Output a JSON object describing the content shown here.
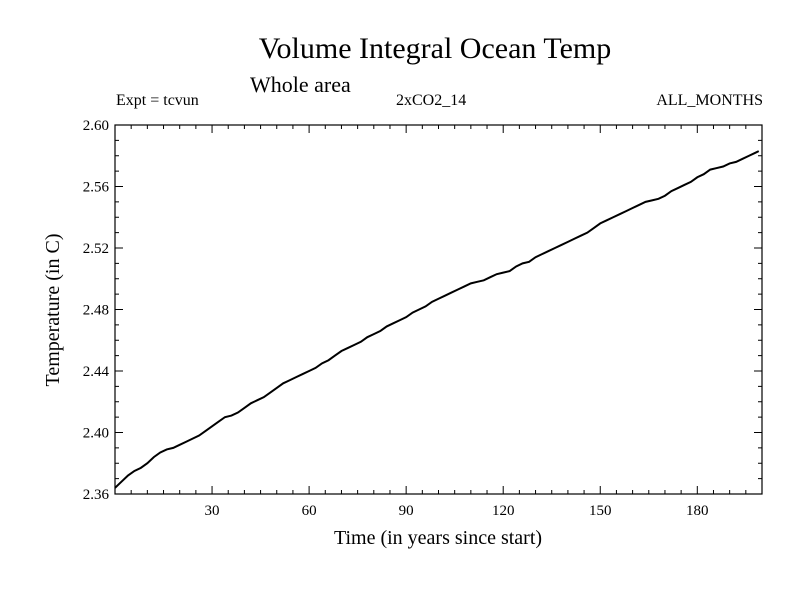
{
  "chart_data": {
    "type": "line",
    "title": "Volume Integral Ocean Temp",
    "subtitle": "Whole area",
    "annotations": {
      "left": "Expt = tcvun",
      "center": "2xCO2_14",
      "right": "ALL_MONTHS"
    },
    "xlabel": "Time (in years since start)",
    "ylabel": "Temperature (in C)",
    "xlim": [
      0,
      200
    ],
    "ylim": [
      2.36,
      2.6
    ],
    "xticks": [
      30,
      60,
      90,
      120,
      150,
      180
    ],
    "yticks": [
      "2.36",
      "2.40",
      "2.44",
      "2.48",
      "2.52",
      "2.56",
      "2.60"
    ],
    "grid": false,
    "series": [
      {
        "values_x": [
          0,
          2,
          4,
          6,
          8,
          10,
          12,
          14,
          16,
          18,
          20,
          22,
          24,
          26,
          28,
          30,
          32,
          34,
          36,
          38,
          40,
          42,
          44,
          46,
          48,
          50,
          52,
          54,
          56,
          58,
          60,
          62,
          64,
          66,
          68,
          70,
          72,
          74,
          76,
          78,
          80,
          82,
          84,
          86,
          88,
          90,
          92,
          94,
          96,
          98,
          100,
          102,
          104,
          106,
          108,
          110,
          112,
          114,
          116,
          118,
          120,
          122,
          124,
          126,
          128,
          130,
          132,
          134,
          136,
          138,
          140,
          142,
          144,
          146,
          148,
          150,
          152,
          154,
          156,
          158,
          160,
          162,
          164,
          166,
          168,
          170,
          172,
          174,
          176,
          178,
          180,
          182,
          184,
          186,
          188,
          190,
          192,
          194,
          196,
          198,
          199
        ],
        "values_y": [
          2.364,
          2.368,
          2.372,
          2.375,
          2.377,
          2.38,
          2.384,
          2.387,
          2.389,
          2.39,
          2.392,
          2.394,
          2.396,
          2.398,
          2.401,
          2.404,
          2.407,
          2.41,
          2.411,
          2.413,
          2.416,
          2.419,
          2.421,
          2.423,
          2.426,
          2.429,
          2.432,
          2.434,
          2.436,
          2.438,
          2.44,
          2.442,
          2.445,
          2.447,
          2.45,
          2.453,
          2.455,
          2.457,
          2.459,
          2.462,
          2.464,
          2.466,
          2.469,
          2.471,
          2.473,
          2.475,
          2.478,
          2.48,
          2.482,
          2.485,
          2.487,
          2.489,
          2.491,
          2.493,
          2.495,
          2.497,
          2.498,
          2.499,
          2.501,
          2.503,
          2.504,
          2.505,
          2.508,
          2.51,
          2.511,
          2.514,
          2.516,
          2.518,
          2.52,
          2.522,
          2.524,
          2.526,
          2.528,
          2.53,
          2.533,
          2.536,
          2.538,
          2.54,
          2.542,
          2.544,
          2.546,
          2.548,
          2.55,
          2.551,
          2.552,
          2.554,
          2.557,
          2.559,
          2.561,
          2.563,
          2.566,
          2.568,
          2.571,
          2.572,
          2.573,
          2.575,
          2.576,
          2.578,
          2.58,
          2.582,
          2.583
        ]
      }
    ]
  }
}
